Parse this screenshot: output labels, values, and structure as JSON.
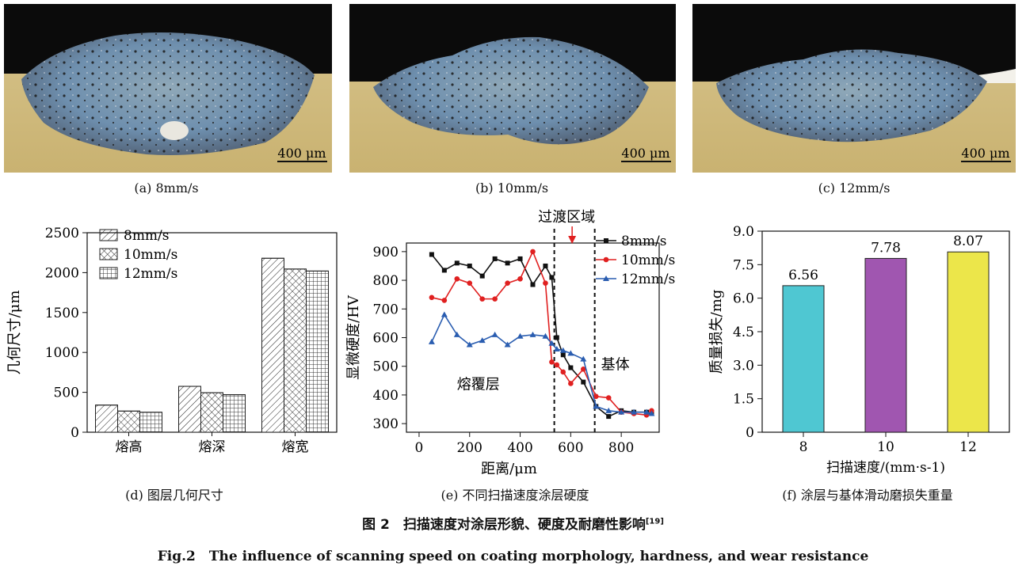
{
  "micrographs": [
    {
      "scale": "400 μm",
      "caption": "(a) 8mm/s"
    },
    {
      "scale": "400 μm",
      "caption": "(b) 10mm/s"
    },
    {
      "scale": "400 μm",
      "caption": "(c) 12mm/s"
    }
  ],
  "captions": {
    "d": "(d) 图层几何尺寸",
    "e": "(e) 不同扫描速度涂层硬度",
    "f": "(f) 涂层与基体滑动磨损失重量"
  },
  "figure": {
    "title_cn": "图 2　扫描速度对涂层形貌、硬度及耐磨性影响",
    "title_cn_ref": "[19]",
    "title_en": "Fig.2　The influence of scanning speed on coating morphology, hardness, and wear resistance"
  },
  "chart_data": [
    {
      "id": "d",
      "type": "bar",
      "ylabel": "几何尺寸/μm",
      "ylim": [
        0,
        2500
      ],
      "yticks": [
        "0",
        "500",
        "1000",
        "1500",
        "2000",
        "2500"
      ],
      "categories": [
        "熔高",
        "熔深",
        "熔宽"
      ],
      "series": [
        {
          "name": "8mm/s",
          "values": [
            340,
            575,
            2180
          ],
          "pattern": "diag"
        },
        {
          "name": "10mm/s",
          "values": [
            265,
            495,
            2045
          ],
          "pattern": "cross"
        },
        {
          "name": "12mm/s",
          "values": [
            250,
            470,
            2020
          ],
          "pattern": "grid"
        }
      ]
    },
    {
      "id": "e",
      "type": "line",
      "xlabel": "距离/μm",
      "ylabel": "显微硬度/HV",
      "xlim": [
        -50,
        950
      ],
      "ylim": [
        270,
        930
      ],
      "xticks": [
        "0",
        "200",
        "400",
        "600",
        "800"
      ],
      "yticks": [
        "300",
        "400",
        "500",
        "600",
        "700",
        "800",
        "900"
      ],
      "annotations": {
        "transition": "过渡区域",
        "coating": "熔覆层",
        "substrate": "基体"
      },
      "dashed_lines_x": [
        535,
        695
      ],
      "series": [
        {
          "name": "8mm/s",
          "color": "#111111",
          "marker": "square",
          "x": [
            50,
            100,
            150,
            200,
            250,
            300,
            350,
            400,
            450,
            500,
            525,
            545,
            570,
            600,
            650,
            700,
            750,
            800,
            850,
            900,
            920
          ],
          "y": [
            890,
            835,
            860,
            850,
            815,
            875,
            860,
            875,
            785,
            850,
            810,
            600,
            540,
            495,
            445,
            360,
            325,
            345,
            340,
            340,
            335
          ]
        },
        {
          "name": "10mm/s",
          "color": "#e02020",
          "marker": "circle",
          "x": [
            50,
            100,
            150,
            200,
            250,
            300,
            350,
            400,
            450,
            500,
            525,
            545,
            570,
            600,
            650,
            700,
            750,
            800,
            850,
            900,
            920
          ],
          "y": [
            740,
            730,
            805,
            790,
            735,
            735,
            790,
            805,
            900,
            790,
            515,
            505,
            480,
            440,
            490,
            395,
            390,
            340,
            335,
            330,
            345
          ]
        },
        {
          "name": "12mm/s",
          "color": "#2a5db0",
          "marker": "triangle",
          "x": [
            50,
            100,
            150,
            200,
            250,
            300,
            350,
            400,
            450,
            500,
            525,
            545,
            570,
            600,
            650,
            700,
            750,
            800,
            850,
            900,
            920
          ],
          "y": [
            585,
            680,
            610,
            575,
            590,
            610,
            575,
            605,
            610,
            605,
            580,
            560,
            555,
            545,
            525,
            360,
            345,
            340,
            340,
            340,
            335
          ]
        }
      ]
    },
    {
      "id": "f",
      "type": "bar",
      "xlabel": "扫描速度/(mm·s-1)",
      "ylabel": "质量损失/mg",
      "ylim": [
        0,
        9
      ],
      "yticks": [
        "0",
        "1.5",
        "3.0",
        "4.5",
        "6.0",
        "7.5",
        "9.0"
      ],
      "categories": [
        "8",
        "10",
        "12"
      ],
      "values": [
        6.56,
        7.78,
        8.07
      ],
      "labels": [
        "6.56",
        "7.78",
        "8.07"
      ],
      "colors": [
        "#4fc7d2",
        "#a056b0",
        "#ece64a"
      ]
    }
  ]
}
